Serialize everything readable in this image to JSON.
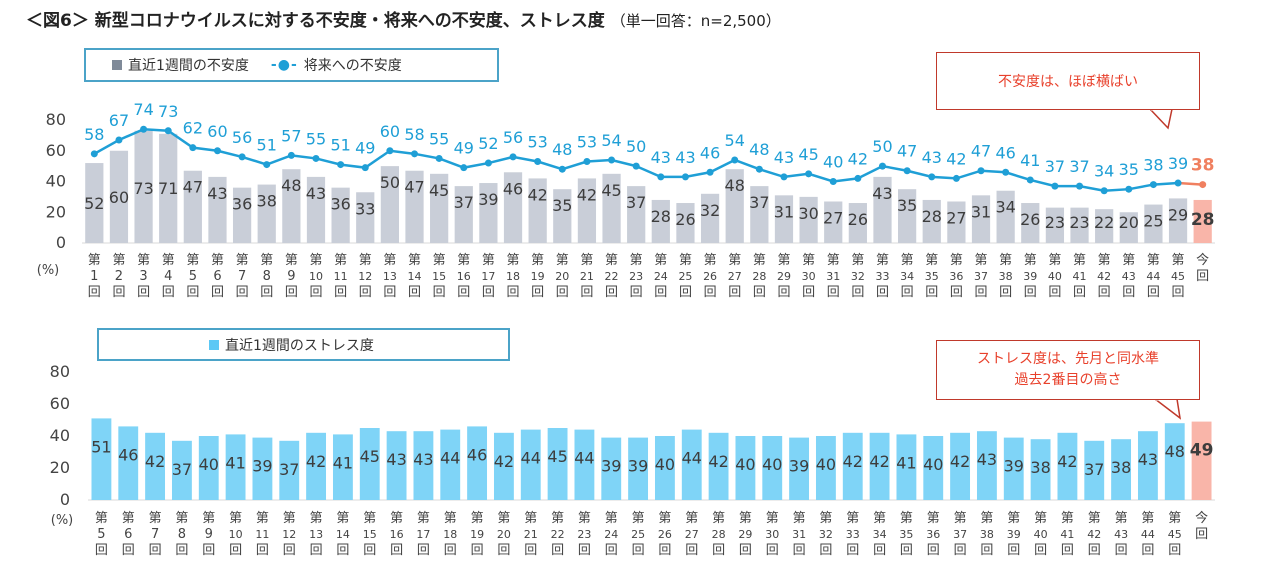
{
  "title": "＜図6＞ 新型コロナウイルスに対する不安度・将来への不安度、ストレス度",
  "subtitle": "（単一回答：n=2,500）",
  "legend_top": {
    "bar_label": "直近1週間の不安度",
    "line_marker": "-●-",
    "line_label": "将来への不安度"
  },
  "legend_bottom": {
    "bar_label": "直近1週間のストレス度"
  },
  "callout_top": "不安度は、ほぼ横ばい",
  "callout_bottom": {
    "line1": "ストレス度は、先月と同水準",
    "line2": "過去2番目の高さ"
  },
  "colors": {
    "bar_gray": "#c9ced8",
    "bar_blue": "#7fd4f7",
    "bar_highlight": "#f9b5a9",
    "line_blue": "#1f9fd6",
    "highlight_text": "#f08060",
    "callout": "#e8412c"
  },
  "chart_data": [
    {
      "type": "bar+line",
      "name": "anxiety",
      "categories": [
        "第1回",
        "第2回",
        "第3回",
        "第4回",
        "第5回",
        "第6回",
        "第7回",
        "第8回",
        "第9回",
        "第10回",
        "第11回",
        "第12回",
        "第13回",
        "第14回",
        "第15回",
        "第16回",
        "第17回",
        "第18回",
        "第19回",
        "第20回",
        "第21回",
        "第22回",
        "第23回",
        "第24回",
        "第25回",
        "第26回",
        "第27回",
        "第28回",
        "第29回",
        "第30回",
        "第31回",
        "第32回",
        "第33回",
        "第34回",
        "第35回",
        "第36回",
        "第37回",
        "第38回",
        "第39回",
        "第40回",
        "第41回",
        "第42回",
        "第43回",
        "第44回",
        "第45回",
        "今回"
      ],
      "series": [
        {
          "name": "直近1週間の不安度",
          "kind": "bar",
          "values": [
            52,
            60,
            73,
            71,
            47,
            43,
            36,
            38,
            48,
            43,
            36,
            33,
            50,
            47,
            45,
            37,
            39,
            46,
            42,
            35,
            42,
            45,
            37,
            28,
            26,
            32,
            48,
            37,
            31,
            30,
            27,
            26,
            43,
            35,
            28,
            27,
            31,
            34,
            26,
            23,
            23,
            22,
            20,
            25,
            29,
            28
          ]
        },
        {
          "name": "将来への不安度",
          "kind": "line",
          "values": [
            58,
            67,
            74,
            73,
            62,
            60,
            56,
            51,
            57,
            55,
            51,
            49,
            60,
            58,
            55,
            49,
            52,
            56,
            53,
            48,
            53,
            54,
            50,
            43,
            43,
            46,
            54,
            48,
            43,
            45,
            40,
            42,
            50,
            47,
            43,
            42,
            47,
            46,
            41,
            37,
            37,
            34,
            35,
            38,
            39,
            38
          ]
        }
      ],
      "ylim": [
        0,
        80
      ],
      "yticks": [
        "0",
        "20",
        "40",
        "60",
        "80"
      ],
      "ylabel": "(%)"
    },
    {
      "type": "bar",
      "name": "stress",
      "categories": [
        "第5回",
        "第6回",
        "第7回",
        "第8回",
        "第9回",
        "第10回",
        "第11回",
        "第12回",
        "第13回",
        "第14回",
        "第15回",
        "第16回",
        "第17回",
        "第18回",
        "第19回",
        "第20回",
        "第21回",
        "第22回",
        "第23回",
        "第24回",
        "第25回",
        "第26回",
        "第27回",
        "第28回",
        "第29回",
        "第30回",
        "第31回",
        "第32回",
        "第33回",
        "第34回",
        "第35回",
        "第36回",
        "第37回",
        "第38回",
        "第39回",
        "第40回",
        "第41回",
        "第42回",
        "第43回",
        "第44回",
        "第45回",
        "今回"
      ],
      "series": [
        {
          "name": "直近1週間のストレス度",
          "kind": "bar",
          "values": [
            51,
            46,
            42,
            37,
            40,
            41,
            39,
            37,
            42,
            41,
            45,
            43,
            43,
            44,
            46,
            42,
            44,
            45,
            44,
            39,
            39,
            40,
            44,
            42,
            40,
            40,
            39,
            40,
            42,
            42,
            41,
            40,
            42,
            43,
            39,
            38,
            42,
            37,
            38,
            43,
            48,
            49
          ]
        }
      ],
      "ylim": [
        0,
        80
      ],
      "yticks": [
        "0",
        "20",
        "40",
        "60",
        "80"
      ],
      "ylabel": "(%)"
    }
  ]
}
